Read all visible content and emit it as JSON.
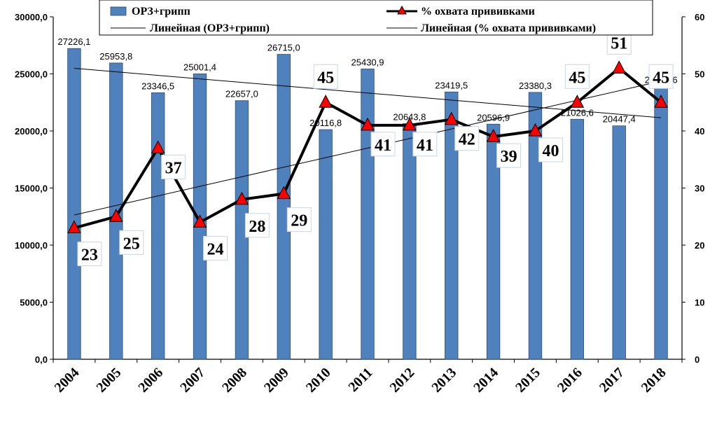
{
  "chart_data": {
    "type": "bar+line",
    "title": "",
    "categories": [
      "2004",
      "2005",
      "2006",
      "2007",
      "2008",
      "2009",
      "2010",
      "2011",
      "2012",
      "2013",
      "2014",
      "2015",
      "2016",
      "2017",
      "2018"
    ],
    "series": [
      {
        "name": "ОРЗ+грипп",
        "type": "bar",
        "axis": "left",
        "color": "#4F81BD",
        "values": [
          27226.1,
          25953.8,
          23346.5,
          25001.4,
          22657.0,
          26715.0,
          20116.8,
          25430.9,
          20643.8,
          23419.5,
          20596.9,
          23380.3,
          21026.6,
          20447.4,
          23900.6
        ],
        "value_labels": [
          "27226,1",
          "25953,8",
          "23346,5",
          "25001,4",
          "22657,0",
          "26715,0",
          "20116,8",
          "25430,9",
          "20643,8",
          "23419,5",
          "20596,9",
          "23380,3",
          "21026,6",
          "20447,4",
          "23900,6"
        ]
      },
      {
        "name": "% охвата прививками",
        "type": "line",
        "axis": "right",
        "color": "#000000",
        "marker": "triangle",
        "marker_color": "#FF0000",
        "values": [
          23,
          25,
          37,
          24,
          28,
          29,
          45,
          41,
          41,
          42,
          39,
          40,
          45,
          51,
          45
        ],
        "value_labels": [
          "23",
          "25",
          "37",
          "24",
          "28",
          "29",
          "45",
          "41",
          "41",
          "42",
          "39",
          "40",
          "45",
          "51",
          "45"
        ]
      },
      {
        "name": "Линейная (ОРЗ+грипп)",
        "type": "trendline",
        "axis": "left",
        "of": "ОРЗ+грипп"
      },
      {
        "name": "Линейная (% охвата прививками)",
        "type": "trendline",
        "axis": "right",
        "of": "% охвата прививками"
      }
    ],
    "y_left": {
      "lim": [
        0,
        30000
      ],
      "ticks": [
        0,
        5000,
        10000,
        15000,
        20000,
        25000,
        30000
      ],
      "tick_labels": [
        "0,0",
        "5000,0",
        "10000,0",
        "15000,0",
        "20000,0",
        "25000,0",
        "30000,0"
      ]
    },
    "y_right": {
      "lim": [
        0,
        60
      ],
      "ticks": [
        0,
        10,
        20,
        30,
        40,
        50,
        60
      ],
      "tick_labels": [
        "0",
        "10",
        "20",
        "30",
        "40",
        "50",
        "60"
      ]
    },
    "grid": false,
    "legend": "top"
  }
}
